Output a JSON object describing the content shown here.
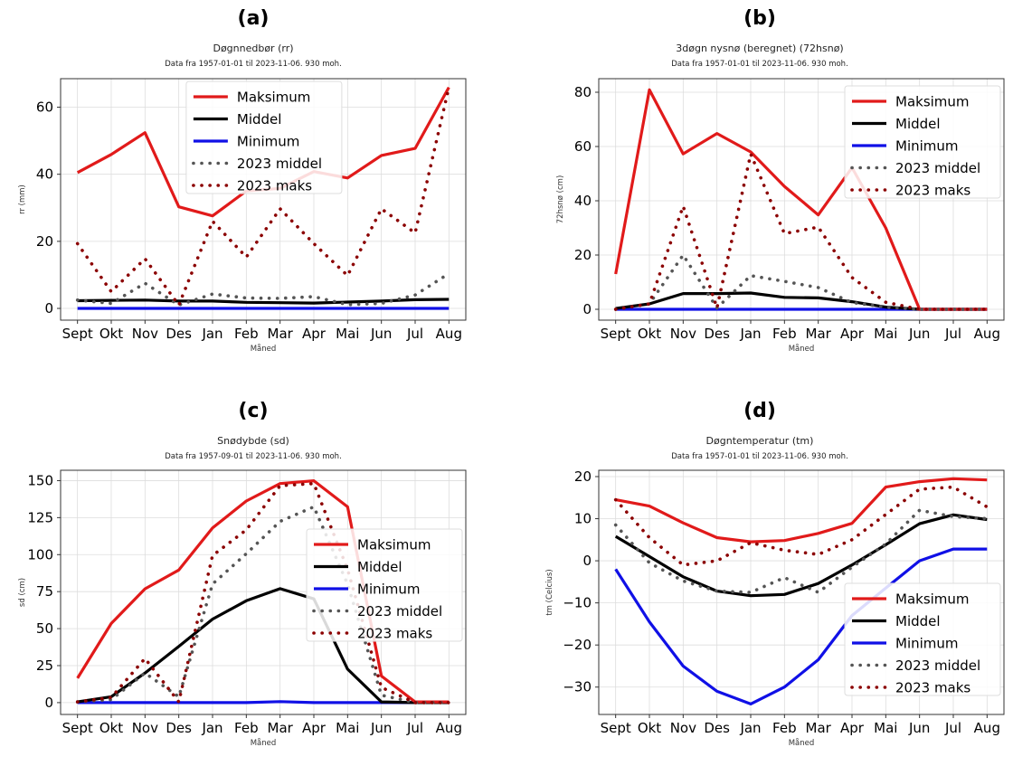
{
  "legend_labels": [
    "Maksimum",
    "Middel",
    "Minimum",
    "2023 middel",
    "2023 maks"
  ],
  "colors": {
    "max": "#e11a1a",
    "mean": "#000000",
    "min": "#1010e6",
    "mean2023": "#555555",
    "max2023": "#8b0000"
  },
  "chart_data": [
    {
      "type": "line",
      "letter": "(a)",
      "title": "Døgnnedbør (rr)",
      "subtitle": "Data fra 1957-01-01 til 2023-11-06. 930 moh.",
      "xlabel": "Måned",
      "ylabel": "rr (mm)",
      "categories": [
        "Sept",
        "Okt",
        "Nov",
        "Des",
        "Jan",
        "Feb",
        "Mar",
        "Apr",
        "Mai",
        "Jun",
        "Jul",
        "Aug"
      ],
      "ylim": [
        -3.5,
        68.5
      ],
      "yticks": [
        0,
        20,
        40,
        60
      ],
      "grid": true,
      "legend_position": "top-center",
      "series": [
        {
          "name": "Maksimum",
          "style": "solid",
          "color_key": "max",
          "values": [
            40.5,
            45.9,
            52.4,
            30.3,
            27.6,
            35.0,
            35.8,
            40.8,
            38.9,
            45.6,
            47.7,
            65.9
          ]
        },
        {
          "name": "Middel",
          "style": "solid",
          "color_key": "mean",
          "values": [
            2.3,
            2.4,
            2.5,
            2.2,
            2.2,
            1.8,
            1.7,
            1.6,
            1.9,
            2.2,
            2.6,
            2.7
          ]
        },
        {
          "name": "Minimum",
          "style": "solid",
          "color_key": "min",
          "values": [
            0,
            0,
            0,
            0,
            0,
            0,
            0,
            0,
            0,
            0,
            0,
            0
          ]
        },
        {
          "name": "2023 middel",
          "style": "dotted",
          "color_key": "mean2023",
          "values": [
            2.5,
            1.5,
            7.5,
            1.0,
            4.3,
            3.1,
            3.0,
            3.5,
            1.1,
            1.5,
            4.0,
            10.4
          ]
        },
        {
          "name": "2023 maks",
          "style": "dotted",
          "color_key": "max2023",
          "values": [
            19.3,
            5.0,
            14.8,
            1.0,
            26.0,
            15.3,
            29.7,
            19.3,
            9.8,
            29.7,
            22.5,
            65.9
          ]
        }
      ]
    },
    {
      "type": "line",
      "letter": "(b)",
      "title": "3døgn nysnø (beregnet) (72hsnø)",
      "subtitle": "Data fra 1957-01-01 til 2023-11-06. 930 moh.",
      "xlabel": "Måned",
      "ylabel": "72hsnø (cm)",
      "categories": [
        "Sept",
        "Okt",
        "Nov",
        "Des",
        "Jan",
        "Feb",
        "Mar",
        "Apr",
        "Mai",
        "Jun",
        "Jul",
        "Aug"
      ],
      "ylim": [
        -4,
        85
      ],
      "yticks": [
        0,
        20,
        40,
        60,
        80
      ],
      "grid": true,
      "legend_position": "top-right",
      "series": [
        {
          "name": "Maksimum",
          "style": "solid",
          "color_key": "max",
          "values": [
            13.0,
            80.9,
            57.3,
            64.8,
            58.0,
            45.3,
            34.8,
            52.2,
            30.0,
            0,
            0,
            0
          ]
        },
        {
          "name": "Middel",
          "style": "solid",
          "color_key": "mean",
          "values": [
            0.3,
            2.0,
            5.8,
            5.8,
            6.0,
            4.4,
            4.2,
            2.8,
            0.8,
            0,
            0,
            0
          ]
        },
        {
          "name": "Minimum",
          "style": "solid",
          "color_key": "min",
          "values": [
            0,
            0,
            0,
            0,
            0,
            0,
            0,
            0,
            0,
            0,
            0,
            0
          ]
        },
        {
          "name": "2023 middel",
          "style": "dotted",
          "color_key": "mean2023",
          "values": [
            0,
            2.0,
            20.0,
            0.5,
            12.4,
            10.3,
            8.0,
            2.5,
            0.8,
            0,
            0,
            0
          ]
        },
        {
          "name": "2023 maks",
          "style": "dotted",
          "color_key": "max2023",
          "values": [
            0,
            2.0,
            38.0,
            0.5,
            57.2,
            27.9,
            30.3,
            11.7,
            2.6,
            0,
            0,
            0
          ]
        }
      ]
    },
    {
      "type": "line",
      "letter": "(c)",
      "title": "Snødybde (sd)",
      "subtitle": "Data fra 1957-09-01 til 2023-11-06. 930 moh.",
      "xlabel": "Måned",
      "ylabel": "sd (cm)",
      "categories": [
        "Sept",
        "Okt",
        "Nov",
        "Des",
        "Jan",
        "Feb",
        "Mar",
        "Apr",
        "Mai",
        "Jun",
        "Jul",
        "Aug"
      ],
      "ylim": [
        -8,
        157
      ],
      "yticks": [
        0,
        25,
        50,
        75,
        100,
        125,
        150
      ],
      "grid": true,
      "legend_position": "center-right",
      "series": [
        {
          "name": "Maksimum",
          "style": "solid",
          "color_key": "max",
          "values": [
            16.5,
            53.5,
            76.9,
            89.6,
            118.1,
            136.2,
            148.0,
            149.9,
            132.3,
            18.0,
            0.5,
            0.5
          ]
        },
        {
          "name": "Middel",
          "style": "solid",
          "color_key": "mean",
          "values": [
            0.5,
            4.0,
            20.0,
            38.0,
            56.4,
            68.8,
            77.0,
            70.1,
            22.6,
            0.5,
            0,
            0
          ]
        },
        {
          "name": "Minimum",
          "style": "solid",
          "color_key": "min",
          "values": [
            0,
            0,
            0,
            0,
            0,
            0,
            0.7,
            0,
            0,
            0,
            0,
            0
          ]
        },
        {
          "name": "2023 middel",
          "style": "dotted",
          "color_key": "mean2023",
          "values": [
            0.5,
            2.0,
            20.0,
            4.0,
            80.1,
            100.6,
            122.5,
            132.3,
            80.0,
            5.0,
            0,
            0
          ]
        },
        {
          "name": "2023 maks",
          "style": "dotted",
          "color_key": "max2023",
          "values": [
            0.5,
            3.5,
            29.8,
            0.5,
            99.4,
            116.7,
            146.6,
            148.0,
            90.0,
            10.3,
            0,
            0
          ]
        }
      ]
    },
    {
      "type": "line",
      "letter": "(d)",
      "title": "Døgntemperatur (tm)",
      "subtitle": "Data fra 1957-01-01 til 2023-11-06. 930 moh.",
      "xlabel": "Måned",
      "ylabel": "tm (Celcius)",
      "categories": [
        "Sept",
        "Okt",
        "Nov",
        "Des",
        "Jan",
        "Feb",
        "Mar",
        "Apr",
        "Mai",
        "Jun",
        "Jul",
        "Aug"
      ],
      "ylim": [
        -36.5,
        21.5
      ],
      "yticks": [
        -30,
        -20,
        -10,
        0,
        10,
        20
      ],
      "grid": true,
      "legend_position": "lower-right",
      "series": [
        {
          "name": "Maksimum",
          "style": "solid",
          "color_key": "max",
          "values": [
            14.5,
            13.0,
            9.0,
            5.5,
            4.5,
            4.8,
            6.5,
            8.9,
            17.5,
            18.8,
            19.5,
            19.2
          ]
        },
        {
          "name": "Middel",
          "style": "solid",
          "color_key": "mean",
          "values": [
            5.8,
            1.0,
            -3.8,
            -7.2,
            -8.3,
            -8.0,
            -5.4,
            -1.0,
            3.8,
            8.8,
            10.9,
            9.8
          ]
        },
        {
          "name": "Minimum",
          "style": "solid",
          "color_key": "min",
          "values": [
            -2.0,
            -14.5,
            -25.0,
            -31.0,
            -34.0,
            -30.0,
            -23.5,
            -13.0,
            -6.5,
            0,
            2.8,
            2.8
          ]
        },
        {
          "name": "2023 middel",
          "style": "dotted",
          "color_key": "mean2023",
          "values": [
            8.5,
            -0.5,
            -4.8,
            -7.2,
            -7.5,
            -4.0,
            -7.5,
            -1.5,
            4.0,
            12.0,
            10.5,
            10.0
          ]
        },
        {
          "name": "2023 maks",
          "style": "dotted",
          "color_key": "max2023",
          "values": [
            14.5,
            5.5,
            -1.0,
            0,
            4.3,
            2.5,
            1.5,
            5.0,
            11.0,
            17.0,
            17.5,
            12.8
          ]
        }
      ]
    }
  ]
}
